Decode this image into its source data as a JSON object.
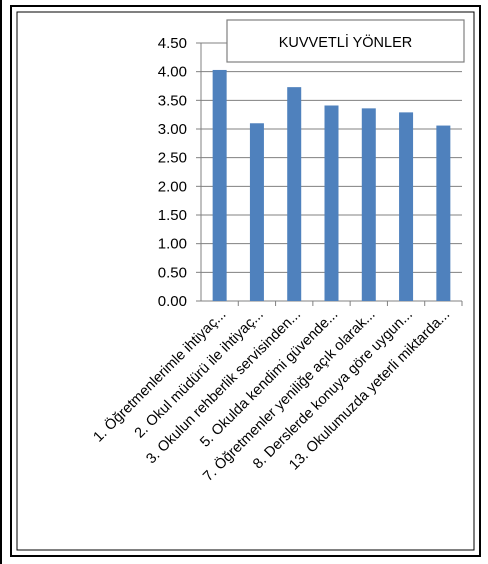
{
  "chart_data": {
    "type": "bar",
    "title": "KUVVETLİ YÖNLER",
    "xlabel": "",
    "ylabel": "",
    "ylim": [
      0,
      4.5
    ],
    "yticks": [
      "0.00",
      "0.50",
      "1.00",
      "1.50",
      "2.00",
      "2.50",
      "3.00",
      "3.50",
      "4.00",
      "4.50"
    ],
    "grid": true,
    "legend": "none",
    "categories": [
      "1. Öğretmenlerimle ihtiyaç...",
      "2. Okul müdürü ile ihtiyaç...",
      "3. Okulun rehberlik servisinden...",
      "5. Okulda kendimi güvende...",
      "7. Öğretmenler yeniliğe açık olarak...",
      "8. Derslerde konuya göre uygun...",
      "13. Okulumuzda yeterli miktarda..."
    ],
    "values": [
      4.03,
      3.1,
      3.73,
      3.41,
      3.36,
      3.29,
      3.06
    ],
    "bar_color": "#4F81BD"
  }
}
